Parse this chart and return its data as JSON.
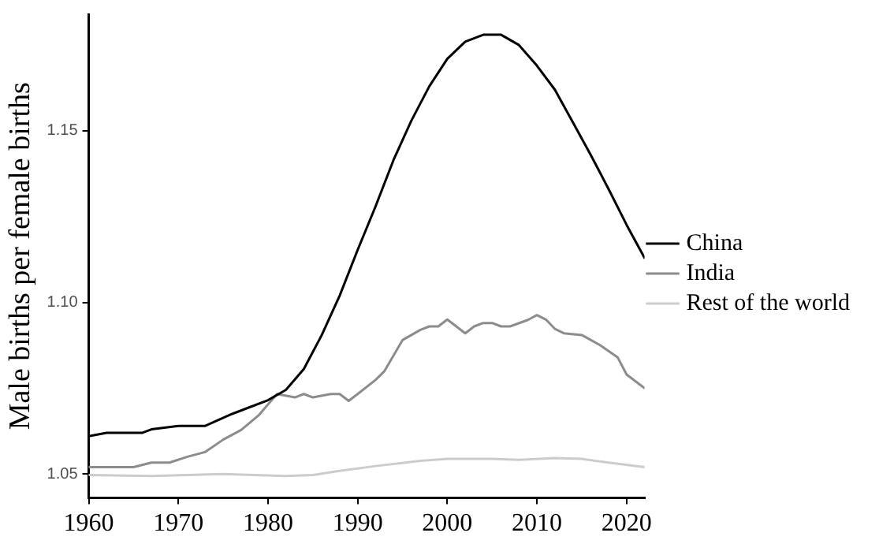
{
  "chart_data": {
    "type": "line",
    "ylabel": "Male births per female births",
    "xlim": [
      1960,
      2022
    ],
    "xticks": [
      1960,
      1970,
      1980,
      1990,
      2000,
      2010,
      2020
    ],
    "ylim": [
      1.043,
      1.184
    ],
    "yticks": [
      {
        "value": 1.05,
        "label": "1.05"
      },
      {
        "value": 1.1,
        "label": "1.10"
      },
      {
        "value": 1.15,
        "label": "1.15"
      }
    ],
    "grid": false,
    "legend": "right",
    "marker": "none",
    "line_style": "solid",
    "series": [
      {
        "name": "China",
        "color": "#000000",
        "x": [
          1960,
          1962,
          1966,
          1967,
          1970,
          1973,
          1976,
          1980,
          1982,
          1984,
          1986,
          1988,
          1990,
          1992,
          1994,
          1996,
          1998,
          2000,
          2002,
          2004,
          2006,
          2008,
          2010,
          2012,
          2014,
          2016,
          2018,
          2020,
          2022
        ],
        "values": [
          1.061,
          1.062,
          1.062,
          1.063,
          1.064,
          1.064,
          1.0675,
          1.0715,
          1.0745,
          1.0806,
          1.0905,
          1.102,
          1.1153,
          1.128,
          1.1415,
          1.153,
          1.163,
          1.171,
          1.176,
          1.178,
          1.178,
          1.175,
          1.169,
          1.162,
          1.1525,
          1.143,
          1.133,
          1.1226,
          1.113
        ]
      },
      {
        "name": "India",
        "color": "#8c8c8c",
        "x": [
          1960,
          1965,
          1967,
          1969,
          1971,
          1973,
          1975,
          1977,
          1979,
          1981,
          1983,
          1984,
          1985,
          1987,
          1988,
          1989,
          1990,
          1992,
          1993,
          1995,
          1997,
          1998,
          1999,
          2000,
          2002,
          2003,
          2004,
          2005,
          2006,
          2007,
          2009,
          2010,
          2011,
          2012,
          2013,
          2015,
          2017,
          2019,
          2020,
          2022
        ],
        "values": [
          1.052,
          1.052,
          1.0533,
          1.0533,
          1.055,
          1.0564,
          1.06,
          1.0628,
          1.0672,
          1.0733,
          1.0723,
          1.0733,
          1.0723,
          1.0733,
          1.0733,
          1.0713,
          1.0733,
          1.0774,
          1.08,
          1.089,
          1.092,
          1.093,
          1.093,
          1.095,
          1.091,
          1.093,
          1.094,
          1.094,
          1.093,
          1.093,
          1.0949,
          1.0963,
          1.095,
          1.0923,
          1.091,
          1.0905,
          1.0876,
          1.084,
          1.079,
          1.075
        ]
      },
      {
        "name": "Rest of the world",
        "color": "#cccccc",
        "x": [
          1960,
          1967,
          1975,
          1982,
          1985,
          1988,
          1992,
          1997,
          2000,
          2005,
          2008,
          2012,
          2015,
          2018,
          2022
        ],
        "values": [
          1.0497,
          1.0494,
          1.05,
          1.0494,
          1.0497,
          1.0509,
          1.0523,
          1.0538,
          1.0544,
          1.0544,
          1.0541,
          1.0546,
          1.0544,
          1.0533,
          1.052
        ]
      }
    ]
  }
}
